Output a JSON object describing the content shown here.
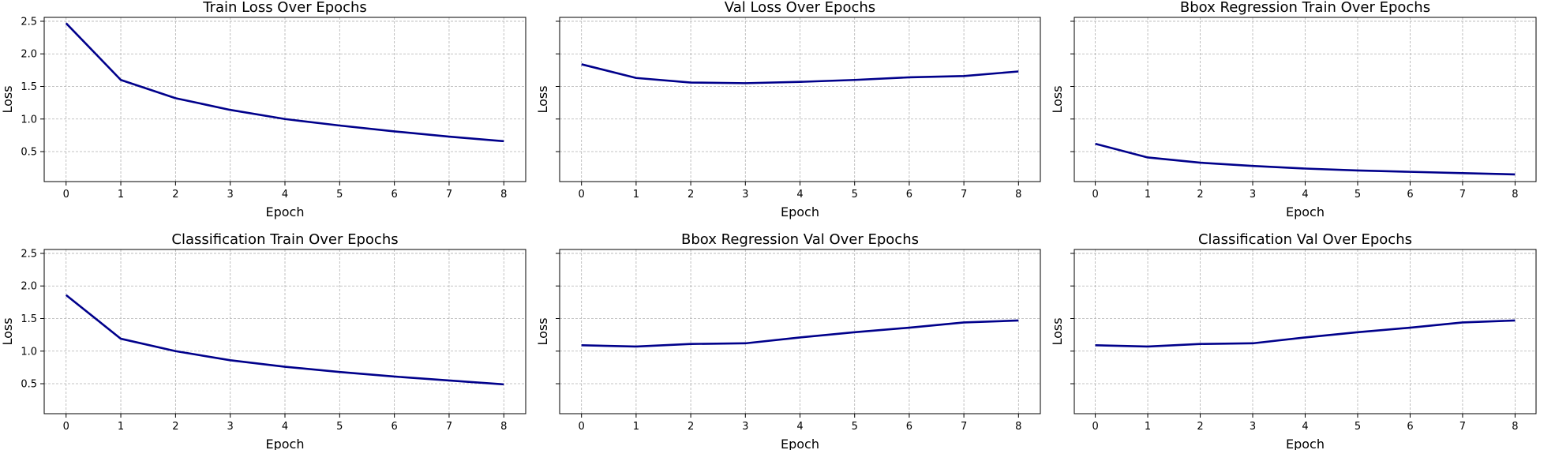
{
  "colors": {
    "line": "#00008b",
    "grid": "#b0b0b0",
    "axis": "#000000",
    "background": "#ffffff"
  },
  "chart_data": [
    {
      "type": "line",
      "title": "Train Loss Over Epochs",
      "xlabel": "Epoch",
      "ylabel": "Loss",
      "x": [
        0,
        1,
        2,
        3,
        4,
        5,
        6,
        7,
        8
      ],
      "series": [
        {
          "values": [
            2.47,
            1.6,
            1.32,
            1.14,
            1.0,
            0.9,
            0.81,
            0.73,
            0.66
          ]
        }
      ],
      "xlim": [
        -0.4,
        8.4
      ],
      "ylim": [
        0.04,
        2.56
      ],
      "xticks": [
        "0",
        "1",
        "2",
        "3",
        "4",
        "5",
        "6",
        "7",
        "8"
      ],
      "yticks": [
        0.5,
        1.0,
        1.5,
        2.0,
        2.5
      ],
      "ytick_labels": [
        "0.5",
        "1.0",
        "1.5",
        "2.0",
        "2.5"
      ],
      "grid": true
    },
    {
      "type": "line",
      "title": "Val Loss Over Epochs",
      "xlabel": "Epoch",
      "ylabel": "Loss",
      "x": [
        0,
        1,
        2,
        3,
        4,
        5,
        6,
        7,
        8
      ],
      "series": [
        {
          "values": [
            1.84,
            1.63,
            1.56,
            1.55,
            1.57,
            1.6,
            1.64,
            1.66,
            1.73
          ]
        }
      ],
      "xlim": [
        -0.4,
        8.4
      ],
      "ylim": [
        0.04,
        2.56
      ],
      "xticks": [
        "0",
        "1",
        "2",
        "3",
        "4",
        "5",
        "6",
        "7",
        "8"
      ],
      "yticks": [
        0.5,
        1.0,
        1.5,
        2.0,
        2.5
      ],
      "ytick_labels": [
        "",
        "",
        "",
        "",
        ""
      ],
      "grid": true
    },
    {
      "type": "line",
      "title": "Bbox Regression Train Over Epochs",
      "xlabel": "Epoch",
      "ylabel": "Loss",
      "x": [
        0,
        1,
        2,
        3,
        4,
        5,
        6,
        7,
        8
      ],
      "series": [
        {
          "values": [
            0.62,
            0.41,
            0.33,
            0.28,
            0.24,
            0.21,
            0.19,
            0.17,
            0.15
          ]
        }
      ],
      "xlim": [
        -0.4,
        8.4
      ],
      "ylim": [
        0.04,
        2.56
      ],
      "xticks": [
        "0",
        "1",
        "2",
        "3",
        "4",
        "5",
        "6",
        "7",
        "8"
      ],
      "yticks": [
        0.5,
        1.0,
        1.5,
        2.0,
        2.5
      ],
      "ytick_labels": [
        "",
        "",
        "",
        "",
        ""
      ],
      "grid": true
    },
    {
      "type": "line",
      "title": "Classification Train Over Epochs",
      "xlabel": "Epoch",
      "ylabel": "Loss",
      "x": [
        0,
        1,
        2,
        3,
        4,
        5,
        6,
        7,
        8
      ],
      "series": [
        {
          "values": [
            1.86,
            1.19,
            1.0,
            0.86,
            0.76,
            0.68,
            0.61,
            0.55,
            0.49
          ]
        }
      ],
      "xlim": [
        -0.4,
        8.4
      ],
      "ylim": [
        0.04,
        2.56
      ],
      "xticks": [
        "0",
        "1",
        "2",
        "3",
        "4",
        "5",
        "6",
        "7",
        "8"
      ],
      "yticks": [
        0.5,
        1.0,
        1.5,
        2.0,
        2.5
      ],
      "ytick_labels": [
        "0.5",
        "1.0",
        "1.5",
        "2.0",
        "2.5"
      ],
      "grid": true
    },
    {
      "type": "line",
      "title": "Bbox Regression Val Over Epochs",
      "xlabel": "Epoch",
      "ylabel": "Loss",
      "x": [
        0,
        1,
        2,
        3,
        4,
        5,
        6,
        7,
        8
      ],
      "series": [
        {
          "values": [
            1.09,
            1.07,
            1.11,
            1.12,
            1.21,
            1.29,
            1.36,
            1.44,
            1.47
          ]
        }
      ],
      "xlim": [
        -0.4,
        8.4
      ],
      "ylim": [
        0.04,
        2.56
      ],
      "xticks": [
        "0",
        "1",
        "2",
        "3",
        "4",
        "5",
        "6",
        "7",
        "8"
      ],
      "yticks": [
        0.5,
        1.0,
        1.5,
        2.0,
        2.5
      ],
      "ytick_labels": [
        "",
        "",
        "",
        "",
        ""
      ],
      "grid": true
    },
    {
      "type": "line",
      "title": "Classification Val Over Epochs",
      "xlabel": "Epoch",
      "ylabel": "Loss",
      "x": [
        0,
        1,
        2,
        3,
        4,
        5,
        6,
        7,
        8
      ],
      "series": [
        {
          "values": [
            1.09,
            1.07,
            1.11,
            1.12,
            1.21,
            1.29,
            1.36,
            1.44,
            1.47
          ]
        }
      ],
      "xlim": [
        -0.4,
        8.4
      ],
      "ylim": [
        0.04,
        2.56
      ],
      "xticks": [
        "0",
        "1",
        "2",
        "3",
        "4",
        "5",
        "6",
        "7",
        "8"
      ],
      "yticks": [
        0.5,
        1.0,
        1.5,
        2.0,
        2.5
      ],
      "ytick_labels": [
        "",
        "",
        "",
        "",
        ""
      ],
      "grid": true
    }
  ]
}
